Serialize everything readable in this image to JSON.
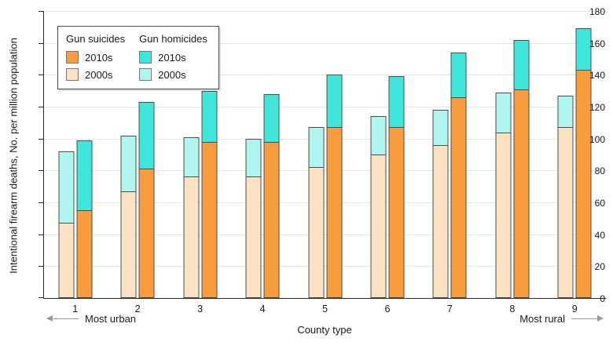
{
  "chart_data": {
    "type": "bar",
    "variant": "grouped-stacked",
    "title": "",
    "categories": [
      "1",
      "2",
      "3",
      "4",
      "5",
      "6",
      "7",
      "8",
      "9"
    ],
    "x_axis": {
      "label": "County type",
      "left_annotation": "Most urban",
      "right_annotation": "Most rural"
    },
    "y_axis": {
      "label": "Intentional firearm deaths, No. per million population",
      "ticks": [
        0,
        20,
        40,
        60,
        80,
        100,
        120,
        140,
        160,
        180
      ],
      "min": 0,
      "max": 180,
      "grid": true
    },
    "legend": {
      "position": "top-left-inside",
      "groups": [
        {
          "title": "Gun suicides",
          "items": [
            {
              "label": "2010s",
              "color": "#F99C3E"
            },
            {
              "label": "2000s",
              "color": "#FBE2C3"
            }
          ]
        },
        {
          "title": "Gun homicides",
          "items": [
            {
              "label": "2010s",
              "color": "#40E6DC"
            },
            {
              "label": "2000s",
              "color": "#B0F5F0"
            }
          ]
        }
      ]
    },
    "bars_per_category": [
      {
        "decade": "2000s",
        "stack": [
          "suicide",
          "homicide"
        ]
      },
      {
        "decade": "2010s",
        "stack": [
          "suicide",
          "homicide"
        ]
      }
    ],
    "series": [
      {
        "name": "Gun suicides 2000s",
        "decade": "2000s",
        "cause": "suicide",
        "color": "#FBE2C3",
        "values": [
          47,
          67,
          76,
          76,
          82,
          90,
          96,
          104,
          107
        ]
      },
      {
        "name": "Gun homicides 2000s",
        "decade": "2000s",
        "cause": "homicide",
        "color": "#B0F5F0",
        "values": [
          45,
          35,
          25,
          24,
          25,
          24,
          22,
          25,
          20
        ]
      },
      {
        "name": "Gun suicides 2010s",
        "decade": "2010s",
        "cause": "suicide",
        "color": "#F99C3E",
        "values": [
          55,
          81,
          98,
          98,
          107,
          107,
          126,
          131,
          143
        ]
      },
      {
        "name": "Gun homicides 2010s",
        "decade": "2010s",
        "cause": "homicide",
        "color": "#40E6DC",
        "values": [
          44,
          42,
          32,
          30,
          33,
          32,
          28,
          31,
          26
        ]
      }
    ],
    "stack_totals": {
      "2000s": [
        92,
        102,
        101,
        100,
        107,
        114,
        118,
        129,
        127
      ],
      "2010s": [
        99,
        123,
        130,
        128,
        140,
        139,
        154,
        162,
        169
      ]
    },
    "colors": {
      "suicide_2010s": "#F99C3E",
      "suicide_2000s": "#FBE2C3",
      "homicide_2010s": "#40E6DC",
      "homicide_2000s": "#B0F5F0",
      "gridline": "#e6e6e6",
      "axis": "#2b2b2b",
      "segment_border": "#4d4d4d"
    }
  }
}
